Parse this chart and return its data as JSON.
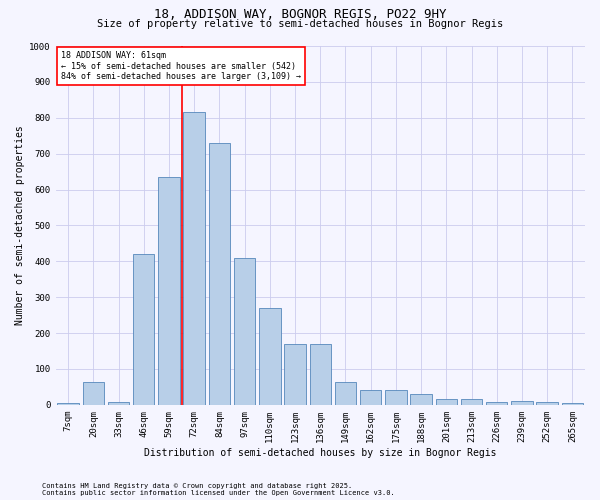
{
  "title_line1": "18, ADDISON WAY, BOGNOR REGIS, PO22 9HY",
  "title_line2": "Size of property relative to semi-detached houses in Bognor Regis",
  "xlabel": "Distribution of semi-detached houses by size in Bognor Regis",
  "ylabel": "Number of semi-detached properties",
  "categories": [
    "7sqm",
    "20sqm",
    "33sqm",
    "46sqm",
    "59sqm",
    "72sqm",
    "84sqm",
    "97sqm",
    "110sqm",
    "123sqm",
    "136sqm",
    "149sqm",
    "162sqm",
    "175sqm",
    "188sqm",
    "201sqm",
    "213sqm",
    "226sqm",
    "239sqm",
    "252sqm",
    "265sqm"
  ],
  "values": [
    5,
    65,
    8,
    420,
    635,
    815,
    730,
    410,
    270,
    170,
    170,
    65,
    40,
    40,
    30,
    17,
    17,
    8,
    10,
    8,
    5
  ],
  "bar_color": "#b8cfe8",
  "bar_edge_color": "#5588bb",
  "vline_color": "red",
  "vline_x": 4.5,
  "annotation_title": "18 ADDISON WAY: 61sqm",
  "annotation_line1": "← 15% of semi-detached houses are smaller (542)",
  "annotation_line2": "84% of semi-detached houses are larger (3,109) →",
  "annotation_box_color": "white",
  "annotation_box_edge_color": "red",
  "ylim": [
    0,
    1000
  ],
  "yticks": [
    0,
    100,
    200,
    300,
    400,
    500,
    600,
    700,
    800,
    900,
    1000
  ],
  "footnote1": "Contains HM Land Registry data © Crown copyright and database right 2025.",
  "footnote2": "Contains public sector information licensed under the Open Government Licence v3.0.",
  "background_color": "#f5f5ff",
  "grid_color": "#ccccee",
  "title1_fontsize": 9,
  "title2_fontsize": 7.5,
  "ylabel_fontsize": 7,
  "xlabel_fontsize": 7,
  "tick_fontsize": 6.5,
  "annot_fontsize": 6,
  "footnote_fontsize": 5
}
